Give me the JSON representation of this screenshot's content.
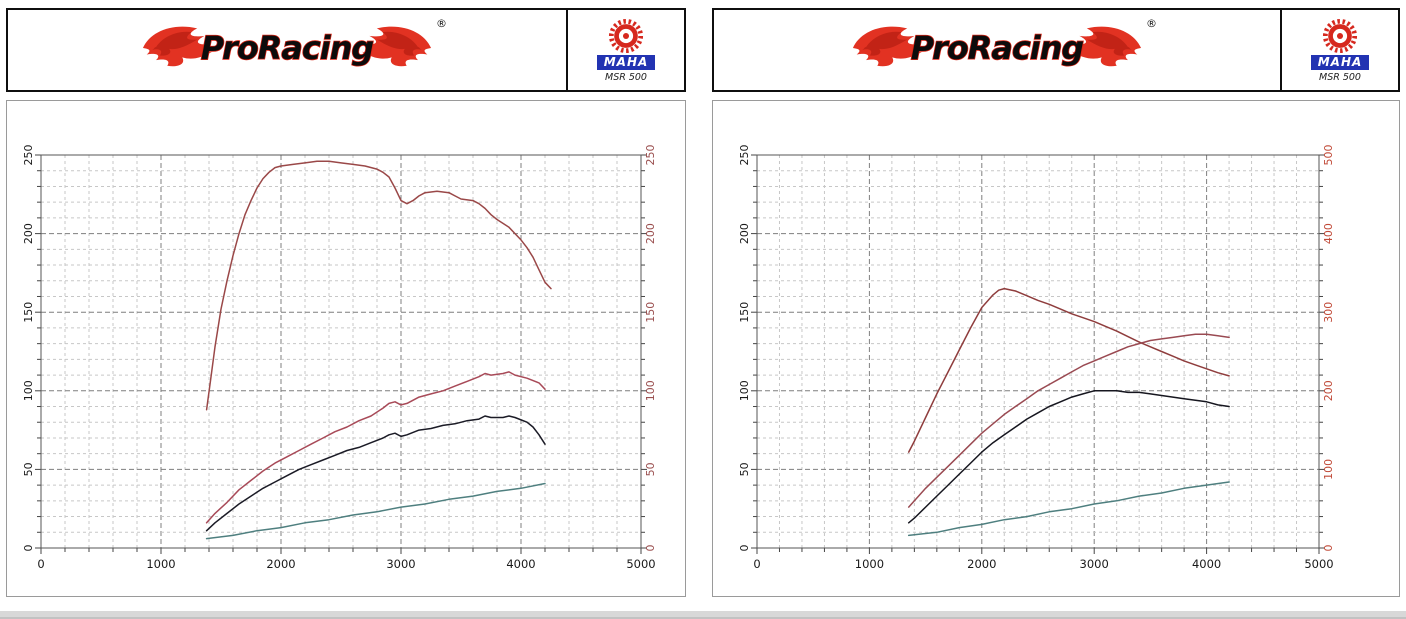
{
  "page": {
    "background": "#ffffff"
  },
  "panels": [
    {
      "brand": "ProRacing",
      "registered": "®",
      "device": {
        "name": "MAHA",
        "model": "MSR 500"
      }
    },
    {
      "brand": "ProRacing",
      "registered": "®",
      "device": {
        "name": "MAHA",
        "model": "MSR 500"
      }
    }
  ],
  "chart_data": [
    {
      "type": "line",
      "panel": "left",
      "title": "",
      "xlabel": "",
      "ylabel_left": "",
      "ylabel_right": "",
      "xlim": [
        0,
        5000
      ],
      "x_minor_step": 200,
      "x_ticks": [
        0,
        1000,
        2000,
        3000,
        4000,
        5000
      ],
      "ylim_left": [
        0,
        250
      ],
      "y_left_minor_step": 10,
      "y_left_ticks": [
        0,
        50,
        100,
        150,
        200,
        250
      ],
      "ylim_right": [
        0,
        250
      ],
      "y_right_ticks": [
        0,
        50,
        100,
        150,
        200,
        250
      ],
      "left_axis_color": "#1a1a1a",
      "right_axis_color": "#9a4e4e",
      "grid": true,
      "legend": "none",
      "series": [
        {
          "name": "torque-curve-dark-red",
          "color": "#9a4848",
          "axis": "right",
          "points": [
            [
              1380,
              88
            ],
            [
              1410,
              105
            ],
            [
              1450,
              128
            ],
            [
              1500,
              152
            ],
            [
              1550,
              170
            ],
            [
              1600,
              186
            ],
            [
              1650,
              200
            ],
            [
              1700,
              212
            ],
            [
              1750,
              221
            ],
            [
              1800,
              229
            ],
            [
              1850,
              235
            ],
            [
              1900,
              239
            ],
            [
              1950,
              242
            ],
            [
              2000,
              243
            ],
            [
              2100,
              244
            ],
            [
              2200,
              245
            ],
            [
              2300,
              246
            ],
            [
              2400,
              246
            ],
            [
              2500,
              245
            ],
            [
              2600,
              244
            ],
            [
              2700,
              243
            ],
            [
              2800,
              241
            ],
            [
              2850,
              239
            ],
            [
              2900,
              236
            ],
            [
              2950,
              229
            ],
            [
              3000,
              221
            ],
            [
              3050,
              219
            ],
            [
              3100,
              221
            ],
            [
              3150,
              224
            ],
            [
              3200,
              226
            ],
            [
              3300,
              227
            ],
            [
              3400,
              226
            ],
            [
              3450,
              224
            ],
            [
              3500,
              222
            ],
            [
              3600,
              221
            ],
            [
              3650,
              219
            ],
            [
              3700,
              216
            ],
            [
              3750,
              212
            ],
            [
              3800,
              209
            ],
            [
              3900,
              204
            ],
            [
              3950,
              200
            ],
            [
              4000,
              196
            ],
            [
              4050,
              191
            ],
            [
              4100,
              185
            ],
            [
              4150,
              177
            ],
            [
              4200,
              169
            ],
            [
              4250,
              165
            ]
          ]
        },
        {
          "name": "power-curve-red",
          "color": "#a84a58",
          "axis": "left",
          "points": [
            [
              1380,
              16
            ],
            [
              1450,
              22
            ],
            [
              1550,
              29
            ],
            [
              1650,
              37
            ],
            [
              1750,
              43
            ],
            [
              1850,
              49
            ],
            [
              1950,
              54
            ],
            [
              2050,
              58
            ],
            [
              2150,
              62
            ],
            [
              2250,
              66
            ],
            [
              2350,
              70
            ],
            [
              2450,
              74
            ],
            [
              2550,
              77
            ],
            [
              2650,
              81
            ],
            [
              2750,
              84
            ],
            [
              2850,
              89
            ],
            [
              2900,
              92
            ],
            [
              2950,
              93
            ],
            [
              3000,
              91
            ],
            [
              3050,
              92
            ],
            [
              3150,
              96
            ],
            [
              3250,
              98
            ],
            [
              3350,
              100
            ],
            [
              3450,
              103
            ],
            [
              3550,
              106
            ],
            [
              3650,
              109
            ],
            [
              3700,
              111
            ],
            [
              3750,
              110
            ],
            [
              3850,
              111
            ],
            [
              3900,
              112
            ],
            [
              3950,
              110
            ],
            [
              4050,
              108
            ],
            [
              4150,
              105
            ],
            [
              4200,
              101
            ]
          ]
        },
        {
          "name": "power-curve-black",
          "color": "#1b1b26",
          "axis": "left",
          "points": [
            [
              1380,
              11
            ],
            [
              1450,
              16
            ],
            [
              1550,
              22
            ],
            [
              1650,
              28
            ],
            [
              1750,
              33
            ],
            [
              1850,
              38
            ],
            [
              1950,
              42
            ],
            [
              2050,
              46
            ],
            [
              2150,
              50
            ],
            [
              2250,
              53
            ],
            [
              2350,
              56
            ],
            [
              2450,
              59
            ],
            [
              2550,
              62
            ],
            [
              2650,
              64
            ],
            [
              2750,
              67
            ],
            [
              2850,
              70
            ],
            [
              2900,
              72
            ],
            [
              2950,
              73
            ],
            [
              3000,
              71
            ],
            [
              3050,
              72
            ],
            [
              3150,
              75
            ],
            [
              3250,
              76
            ],
            [
              3350,
              78
            ],
            [
              3450,
              79
            ],
            [
              3550,
              81
            ],
            [
              3650,
              82
            ],
            [
              3700,
              84
            ],
            [
              3750,
              83
            ],
            [
              3850,
              83
            ],
            [
              3900,
              84
            ],
            [
              3950,
              83
            ],
            [
              4050,
              80
            ],
            [
              4100,
              77
            ],
            [
              4150,
              72
            ],
            [
              4200,
              66
            ]
          ]
        },
        {
          "name": "loss-curve-teal",
          "color": "#4e7f7f",
          "axis": "left",
          "points": [
            [
              1380,
              6
            ],
            [
              1600,
              8
            ],
            [
              1800,
              11
            ],
            [
              2000,
              13
            ],
            [
              2200,
              16
            ],
            [
              2400,
              18
            ],
            [
              2600,
              21
            ],
            [
              2800,
              23
            ],
            [
              3000,
              26
            ],
            [
              3200,
              28
            ],
            [
              3400,
              31
            ],
            [
              3600,
              33
            ],
            [
              3800,
              36
            ],
            [
              4000,
              38
            ],
            [
              4200,
              41
            ]
          ]
        }
      ]
    },
    {
      "type": "line",
      "panel": "right",
      "title": "",
      "xlabel": "",
      "ylabel_left": "",
      "ylabel_right": "",
      "xlim": [
        0,
        5000
      ],
      "x_minor_step": 200,
      "x_ticks": [
        0,
        1000,
        2000,
        3000,
        4000,
        5000
      ],
      "ylim_left": [
        0,
        250
      ],
      "y_left_minor_step": 10,
      "y_left_ticks": [
        0,
        50,
        100,
        150,
        200,
        250
      ],
      "ylim_right": [
        0,
        500
      ],
      "y_right_ticks": [
        0,
        100,
        200,
        300,
        400,
        500
      ],
      "left_axis_color": "#1a1a1a",
      "right_axis_color": "#c14a38",
      "grid": true,
      "legend": "none",
      "series": [
        {
          "name": "torque-curve-dark-red",
          "color": "#8f3d3d",
          "axis": "right",
          "points": [
            [
              1350,
              122
            ],
            [
              1400,
              136
            ],
            [
              1500,
              166
            ],
            [
              1600,
              196
            ],
            [
              1700,
              224
            ],
            [
              1800,
              252
            ],
            [
              1900,
              280
            ],
            [
              2000,
              306
            ],
            [
              2100,
              322
            ],
            [
              2150,
              328
            ],
            [
              2200,
              330
            ],
            [
              2300,
              327
            ],
            [
              2400,
              321
            ],
            [
              2500,
              315
            ],
            [
              2600,
              310
            ],
            [
              2700,
              304
            ],
            [
              2800,
              298
            ],
            [
              2900,
              293
            ],
            [
              3000,
              288
            ],
            [
              3100,
              282
            ],
            [
              3200,
              276
            ],
            [
              3300,
              269
            ],
            [
              3400,
              262
            ],
            [
              3500,
              256
            ],
            [
              3600,
              250
            ],
            [
              3700,
              244
            ],
            [
              3800,
              238
            ],
            [
              3900,
              233
            ],
            [
              4000,
              228
            ],
            [
              4100,
              223
            ],
            [
              4200,
              219
            ]
          ]
        },
        {
          "name": "power-curve-maroon",
          "color": "#9a4a52",
          "axis": "left",
          "points": [
            [
              1350,
              26
            ],
            [
              1400,
              30
            ],
            [
              1500,
              38
            ],
            [
              1600,
              45
            ],
            [
              1700,
              52
            ],
            [
              1800,
              59
            ],
            [
              1900,
              66
            ],
            [
              2000,
              73
            ],
            [
              2100,
              79
            ],
            [
              2200,
              85
            ],
            [
              2300,
              90
            ],
            [
              2400,
              95
            ],
            [
              2500,
              100
            ],
            [
              2600,
              104
            ],
            [
              2700,
              108
            ],
            [
              2800,
              112
            ],
            [
              2900,
              116
            ],
            [
              3000,
              119
            ],
            [
              3100,
              122
            ],
            [
              3200,
              125
            ],
            [
              3300,
              128
            ],
            [
              3400,
              130
            ],
            [
              3500,
              132
            ],
            [
              3600,
              133
            ],
            [
              3700,
              134
            ],
            [
              3800,
              135
            ],
            [
              3900,
              136
            ],
            [
              4000,
              136
            ],
            [
              4100,
              135
            ],
            [
              4200,
              134
            ]
          ]
        },
        {
          "name": "power-curve-black",
          "color": "#16161f",
          "axis": "left",
          "points": [
            [
              1350,
              16
            ],
            [
              1400,
              19
            ],
            [
              1500,
              26
            ],
            [
              1600,
              33
            ],
            [
              1700,
              40
            ],
            [
              1800,
              47
            ],
            [
              1900,
              54
            ],
            [
              2000,
              61
            ],
            [
              2100,
              67
            ],
            [
              2200,
              72
            ],
            [
              2300,
              77
            ],
            [
              2400,
              82
            ],
            [
              2500,
              86
            ],
            [
              2600,
              90
            ],
            [
              2700,
              93
            ],
            [
              2800,
              96
            ],
            [
              2900,
              98
            ],
            [
              3000,
              100
            ],
            [
              3100,
              100
            ],
            [
              3200,
              100
            ],
            [
              3300,
              99
            ],
            [
              3400,
              99
            ],
            [
              3500,
              98
            ],
            [
              3600,
              97
            ],
            [
              3700,
              96
            ],
            [
              3800,
              95
            ],
            [
              3900,
              94
            ],
            [
              4000,
              93
            ],
            [
              4100,
              91
            ],
            [
              4200,
              90
            ]
          ]
        },
        {
          "name": "loss-curve-teal",
          "color": "#4e7f7f",
          "axis": "left",
          "points": [
            [
              1350,
              8
            ],
            [
              1600,
              10
            ],
            [
              1800,
              13
            ],
            [
              2000,
              15
            ],
            [
              2200,
              18
            ],
            [
              2400,
              20
            ],
            [
              2600,
              23
            ],
            [
              2800,
              25
            ],
            [
              3000,
              28
            ],
            [
              3200,
              30
            ],
            [
              3400,
              33
            ],
            [
              3600,
              35
            ],
            [
              3800,
              38
            ],
            [
              4000,
              40
            ],
            [
              4200,
              42
            ]
          ]
        }
      ]
    }
  ]
}
